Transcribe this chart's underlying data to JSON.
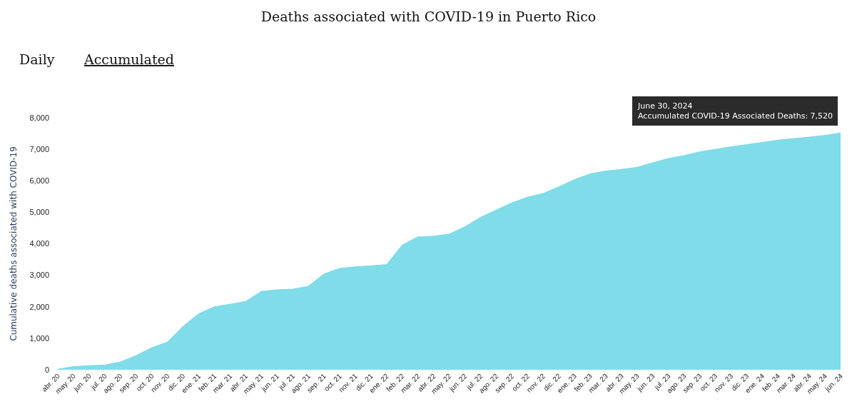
{
  "chart_data": {
    "type": "area",
    "title": "Deaths associated with COVID-19 in Puerto Rico",
    "ylabel": "Cumulative deaths associated with COVID-19",
    "categories": [
      "abr. 20",
      "may. 20",
      "jun. 20",
      "jul. 20",
      "ago. 20",
      "sep. 20",
      "oct. 20",
      "nov. 20",
      "dic. 20",
      "ene. 21",
      "feb. 21",
      "mar. 21",
      "abr. 21",
      "may. 21",
      "jun. 21",
      "jul. 21",
      "ago. 21",
      "sep. 21",
      "oct. 21",
      "nov. 21",
      "dic. 21",
      "ene. 22",
      "feb. 22",
      "mar. 22",
      "abr. 22",
      "may. 22",
      "jun. 22",
      "jul. 22",
      "ago. 22",
      "sep. 22",
      "oct. 22",
      "nov. 22",
      "dic. 22",
      "ene. 23",
      "feb. 23",
      "mar. 23",
      "abr. 23",
      "may. 23",
      "jun. 23",
      "jul. 23",
      "ago. 23",
      "sep. 23",
      "oct. 23",
      "nov. 23",
      "dic. 23",
      "ene. 24",
      "feb. 24",
      "mar. 24",
      "abr. 24",
      "may. 24",
      "jun. 24"
    ],
    "series": [
      {
        "color": "#7fdce8",
        "values": [
          20,
          100,
          130,
          150,
          250,
          450,
          700,
          880,
          1380,
          1780,
          2000,
          2080,
          2170,
          2490,
          2540,
          2560,
          2650,
          3040,
          3220,
          3270,
          3300,
          3340,
          3960,
          4220,
          4240,
          4310,
          4540,
          4840,
          5070,
          5300,
          5480,
          5600,
          5810,
          6040,
          6220,
          6310,
          6360,
          6430,
          6570,
          6710,
          6800,
          6920,
          7000,
          7080,
          7150,
          7220,
          7290,
          7340,
          7390,
          7440,
          7520
        ]
      }
    ],
    "ylim": [
      0,
      8000
    ],
    "yticks": [
      {
        "value": 0,
        "label": "0"
      },
      {
        "value": 1000,
        "label": "1,000"
      },
      {
        "value": 2000,
        "label": "2,000"
      },
      {
        "value": 3000,
        "label": "3,000"
      },
      {
        "value": 4000,
        "label": "4,000"
      },
      {
        "value": 5000,
        "label": "5,000"
      },
      {
        "value": 6000,
        "label": "6,000"
      },
      {
        "value": 7000,
        "label": "7,000"
      },
      {
        "value": 8000,
        "label": "8,000"
      }
    ],
    "annotations": [
      "Daily",
      "Accumulated",
      {
        "text": "June 30, 2024\nAccumulated COVID-19 Associated Deaths: 7,520",
        "x": "jun. 24",
        "y": 7520
      }
    ],
    "line_style": "solid"
  }
}
